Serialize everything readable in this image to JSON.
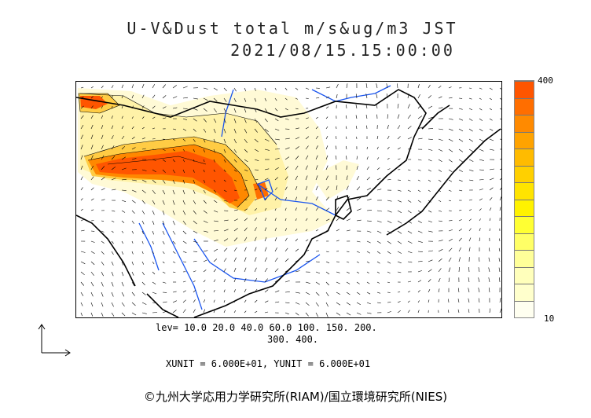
{
  "title": {
    "line1": "U-V&Dust total m/s&ug/m3 JST",
    "line2": "2021/08/15.15:00:00"
  },
  "legend": {
    "max_label": "400",
    "min_label": "10",
    "levels_line1": "lev= 10.0 20.0 40.0 60.0 100. 150. 200.",
    "levels_line2": "300. 400.",
    "unit_line": "XUNIT = 6.000E+01, YUNIT = 6.000E+01",
    "colors": [
      "#ff5500",
      "#ff6e00",
      "#ff8a00",
      "#ffa300",
      "#ffbb00",
      "#ffd000",
      "#ffe400",
      "#fff200",
      "#ffff33",
      "#ffff66",
      "#ffff99",
      "#ffffbb",
      "#ffffcc",
      "#fffff0"
    ]
  },
  "map": {
    "dust_colors": {
      "very_high": "#ff5500",
      "high": "#ff8800",
      "medium": "#ffcc44",
      "low": "#fff2a8",
      "very_low": "#fffad6"
    },
    "river_color": "#1a55ee",
    "coast_color": "#000000"
  },
  "copyright": "©九州大学応用力学研究所(RIAM)/国立環境研究所(NIES)"
}
